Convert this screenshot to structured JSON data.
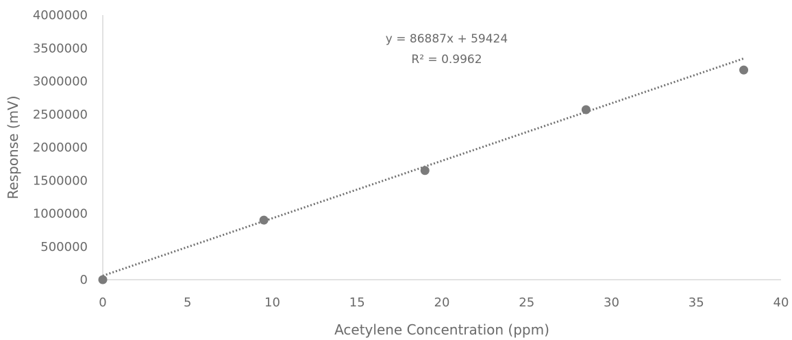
{
  "chart_data": {
    "type": "scatter",
    "title": "",
    "xlabel": "Acetylene Concentration (ppm)",
    "ylabel": "Response (mV)",
    "xlim": [
      0,
      40
    ],
    "ylim": [
      0,
      4000000
    ],
    "x_ticks": [
      0,
      5,
      10,
      15,
      20,
      25,
      30,
      35,
      40
    ],
    "y_ticks": [
      0,
      500000,
      1000000,
      1500000,
      2000000,
      2500000,
      3000000,
      3500000,
      4000000
    ],
    "x_tick_labels": [
      "0",
      "5",
      "10",
      "15",
      "20",
      "25",
      "30",
      "35",
      "40"
    ],
    "y_tick_labels": [
      "0",
      "500000",
      "1000000",
      "1500000",
      "2000000",
      "2500000",
      "3000000",
      "3500000",
      "4000000"
    ],
    "grid": false,
    "series": [
      {
        "points": [
          {
            "x": 0,
            "y": 0
          },
          {
            "x": 9.5,
            "y": 900000
          },
          {
            "x": 19,
            "y": 1650000
          },
          {
            "x": 28.5,
            "y": 2570000
          },
          {
            "x": 37.8,
            "y": 3170000
          }
        ]
      }
    ],
    "trendline": {
      "type": "linear",
      "slope": 86887,
      "intercept": 59424,
      "x_range": [
        0,
        37.8
      ]
    },
    "annotations": {
      "equation": "y = 86887x + 59424",
      "r_squared": "R² = 0.9962"
    },
    "colors": {
      "marker": "#7b7b7b",
      "trendline": "#6f6f6f",
      "axis": "#d9d9d9",
      "text": "#6a6a6a"
    }
  }
}
